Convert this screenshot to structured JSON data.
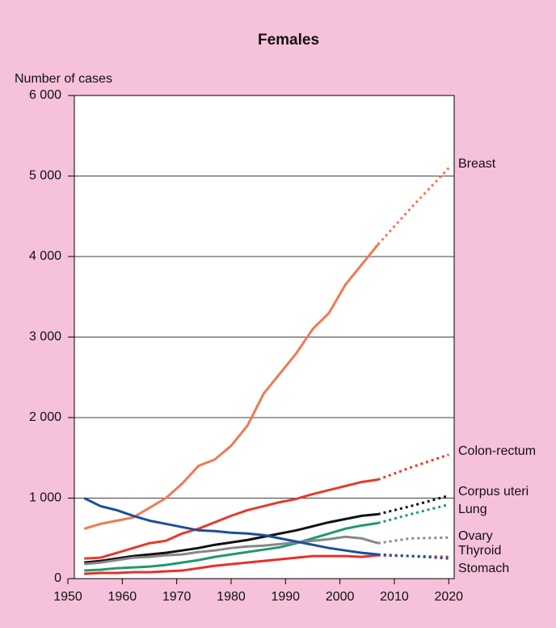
{
  "chart_data": {
    "type": "line",
    "title": "Females",
    "y_label": "Number of cases",
    "xlim": [
      1950,
      2021
    ],
    "ylim": [
      0,
      6000
    ],
    "xticks": [
      1950,
      1960,
      1970,
      1980,
      1990,
      2000,
      2010,
      2020
    ],
    "yticks": [
      0,
      {
        "value": 1000,
        "label": "1 000"
      },
      {
        "value": 2000,
        "label": "2 000"
      },
      {
        "value": 3000,
        "label": "3 000"
      },
      {
        "value": 4000,
        "label": "4 000"
      },
      {
        "value": 5000,
        "label": "5 000"
      },
      {
        "value": 6000,
        "label": "6 000"
      }
    ],
    "grid": true,
    "x": [
      1953,
      1956,
      1959,
      1962,
      1965,
      1968,
      1971,
      1974,
      1977,
      1980,
      1983,
      1986,
      1989,
      1992,
      1995,
      1998,
      2001,
      2004,
      2007
    ],
    "projection_x": [
      2007,
      2013,
      2020
    ],
    "series": [
      {
        "name": "Breast",
        "color": "#f07a52",
        "values": [
          620,
          680,
          720,
          760,
          880,
          1000,
          1180,
          1400,
          1480,
          1650,
          1900,
          2300,
          2550,
          2800,
          3100,
          3300,
          3650,
          3900,
          4150
        ],
        "projection": [
          4150,
          4600,
          5100
        ]
      },
      {
        "name": "Colon-rectum",
        "color": "#e63a2a",
        "values": [
          250,
          260,
          320,
          380,
          440,
          470,
          560,
          620,
          700,
          780,
          850,
          900,
          950,
          990,
          1050,
          1100,
          1150,
          1200,
          1230
        ],
        "projection": [
          1230,
          1380,
          1540
        ]
      },
      {
        "name": "Corpus uteri",
        "color": "#111111",
        "values": [
          200,
          220,
          250,
          280,
          300,
          320,
          350,
          380,
          420,
          450,
          480,
          520,
          560,
          600,
          650,
          700,
          740,
          780,
          800
        ],
        "projection": [
          800,
          900,
          1030
        ]
      },
      {
        "name": "Lung",
        "color": "#1f9a6a",
        "values": [
          100,
          110,
          130,
          140,
          150,
          170,
          200,
          230,
          270,
          300,
          330,
          360,
          390,
          440,
          500,
          560,
          620,
          660,
          690
        ],
        "projection": [
          690,
          800,
          920
        ]
      },
      {
        "name": "Ovary",
        "color": "#888888",
        "values": [
          180,
          200,
          230,
          260,
          270,
          290,
          300,
          330,
          350,
          380,
          400,
          410,
          430,
          450,
          470,
          490,
          520,
          500,
          440
        ],
        "projection": [
          440,
          500,
          510
        ]
      },
      {
        "name": "Thyroid",
        "color": "#e8302a",
        "values": [
          60,
          70,
          70,
          80,
          80,
          90,
          100,
          130,
          160,
          180,
          200,
          220,
          240,
          260,
          280,
          280,
          280,
          270,
          290
        ],
        "projection": [
          290,
          280,
          270
        ]
      },
      {
        "name": "Stomach",
        "color": "#1a4f9c",
        "values": [
          1000,
          900,
          850,
          780,
          720,
          680,
          640,
          600,
          590,
          570,
          560,
          540,
          500,
          460,
          420,
          380,
          350,
          320,
          300
        ],
        "projection": [
          300,
          280,
          250
        ]
      }
    ]
  }
}
